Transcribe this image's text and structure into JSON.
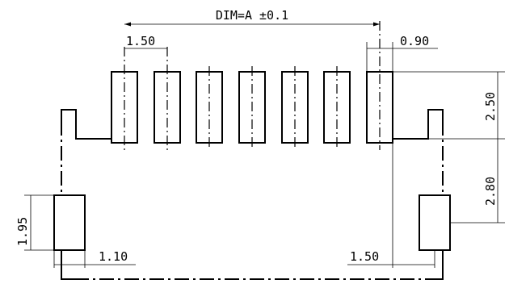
{
  "drawing": {
    "dim_total": "DIM=A ±0.1",
    "dim_pitch": "1.50",
    "dim_pad_width": "0.90",
    "dim_pad_length": "2.50",
    "dim_offset": "2.80",
    "dim_side_pad_height": "1.95",
    "dim_side_pad_width": "1.10",
    "dim_side_offset": "1.50",
    "pad_count": 7
  }
}
